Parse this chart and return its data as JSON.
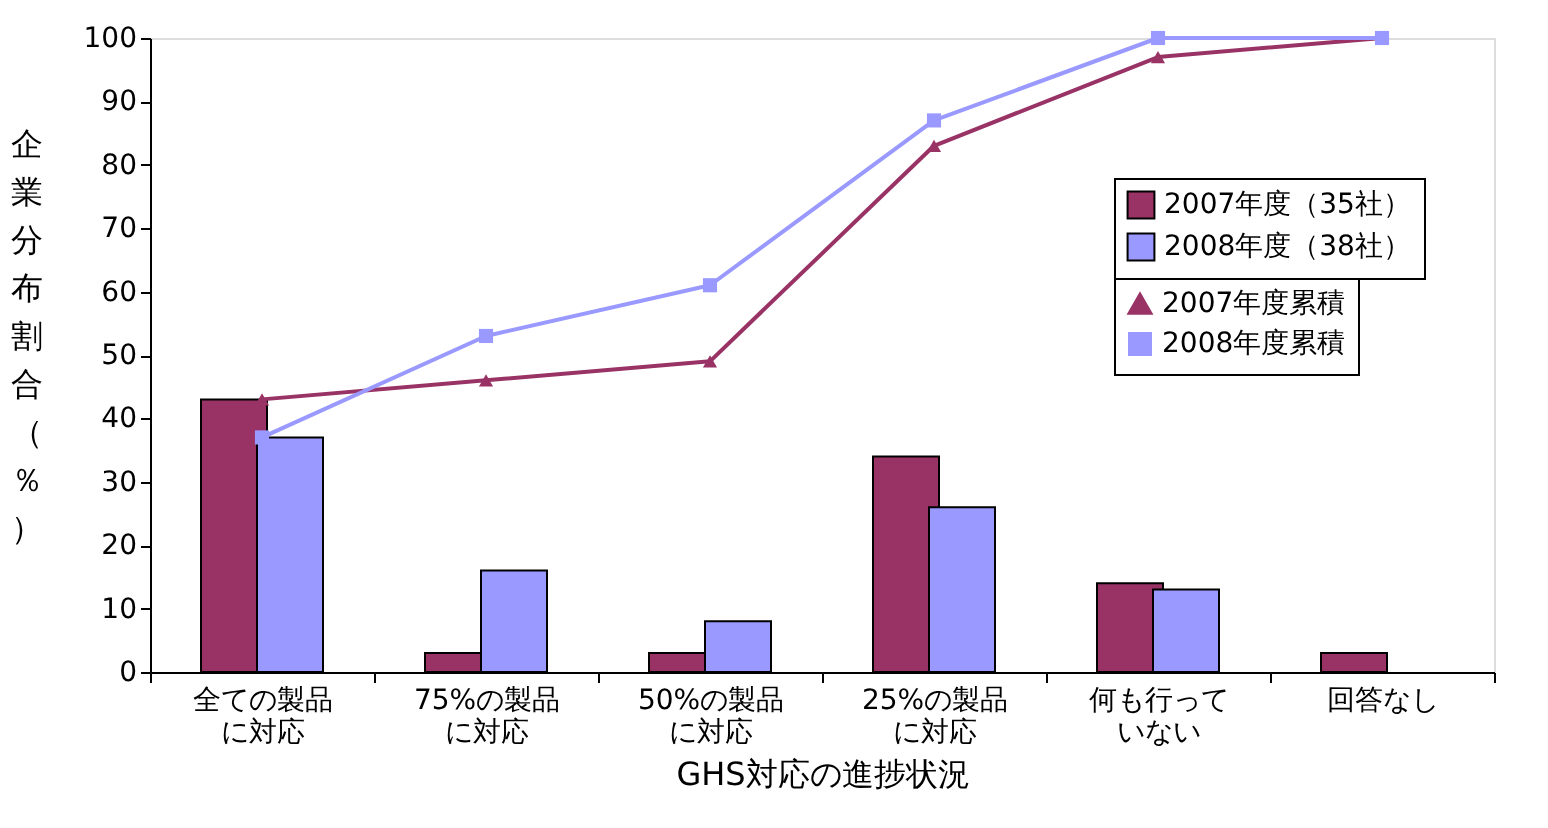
{
  "chart_data": {
    "type": "bar",
    "xlabel": "GHS対応の進捗状況",
    "ylabel": "企業分布割合（％）",
    "categories": [
      "全ての製品に対応",
      "75%の製品に対応",
      "50%の製品に対応",
      "25%の製品に対応",
      "何も行っていない",
      "回答なし"
    ],
    "series": [
      {
        "name": "2007年度（35社）",
        "color": "#993366",
        "values": [
          43,
          3,
          3,
          34,
          14,
          3
        ]
      },
      {
        "name": "2008年度（38社）",
        "color": "#9999ff",
        "values": [
          37,
          16,
          8,
          26,
          13,
          null
        ]
      },
      {
        "name": "2007年度累積",
        "type": "line",
        "color": "#993366",
        "marker": "triangle",
        "line_style": "solid",
        "values": [
          43,
          46,
          49,
          83,
          97,
          100
        ]
      },
      {
        "name": "2008年度累積",
        "type": "line",
        "color": "#9999ff",
        "marker": "square",
        "line_style": "solid",
        "values": [
          37,
          53,
          61,
          87,
          100,
          100
        ]
      }
    ],
    "ylim": [
      0,
      100
    ],
    "yticks": [
      0,
      10,
      20,
      30,
      40,
      50,
      60,
      70,
      80,
      90,
      100
    ],
    "grid": false,
    "legend": "right"
  }
}
